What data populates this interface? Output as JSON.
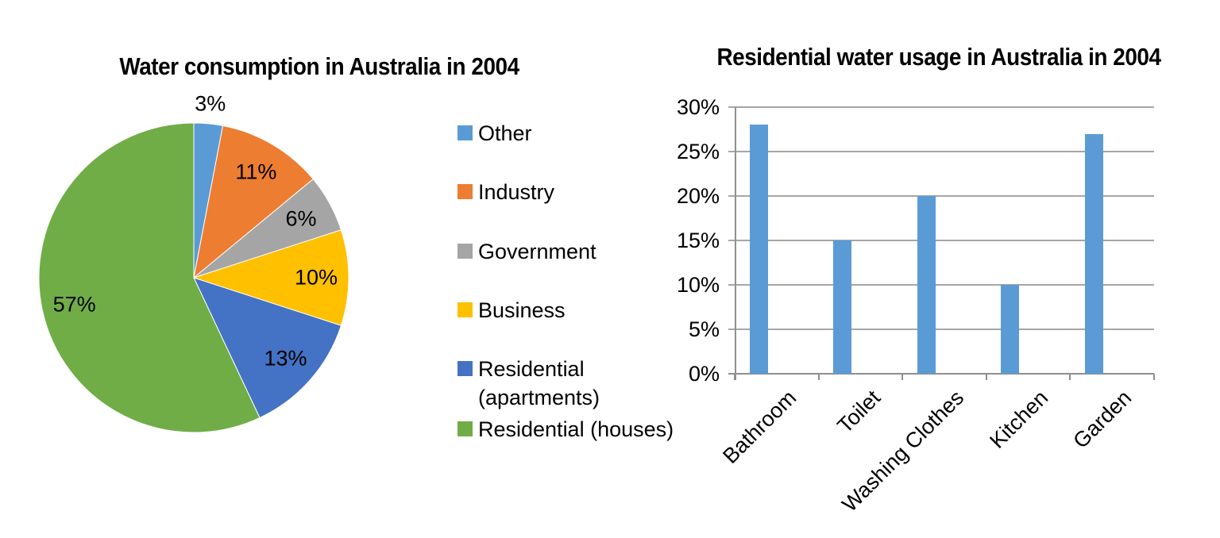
{
  "chart_data": [
    {
      "type": "pie",
      "title": "Water consumption in Australia in 2004",
      "slices": [
        {
          "label": "Other",
          "value": 3,
          "data_label": "3%",
          "color": "#5B9BD5"
        },
        {
          "label": "Industry",
          "value": 11,
          "data_label": "11%",
          "color": "#ED7D31"
        },
        {
          "label": "Government",
          "value": 6,
          "data_label": "6%",
          "color": "#A5A5A5"
        },
        {
          "label": "Business",
          "value": 10,
          "data_label": "10%",
          "color": "#FFC000"
        },
        {
          "label": "Residential (apartments)",
          "value": 13,
          "data_label": "13%",
          "color": "#4472C4"
        },
        {
          "label": "Residential (houses)",
          "value": 57,
          "data_label": "57%",
          "color": "#70AD47"
        }
      ],
      "start_angle": "12 o'clock, clockwise",
      "legend_position": "right",
      "data_labels_shown": true
    },
    {
      "type": "bar",
      "title": "Residential water usage in Australia in 2004",
      "categories": [
        "Bathroom",
        "Toilet",
        "Washing Clothes",
        "Kitchen",
        "Garden"
      ],
      "values": [
        28,
        15,
        20,
        10,
        27
      ],
      "value_unit": "%",
      "bar_color": "#5B9BD5",
      "ylim": [
        0,
        30
      ],
      "ytick_step": 5,
      "ytick_labels": [
        "0%",
        "5%",
        "10%",
        "15%",
        "20%",
        "25%",
        "30%"
      ],
      "grid": true,
      "gridline_color": "#A6A6A6",
      "axis_color": "#8F8F8F",
      "xlabel_rotation_deg": -45
    }
  ]
}
